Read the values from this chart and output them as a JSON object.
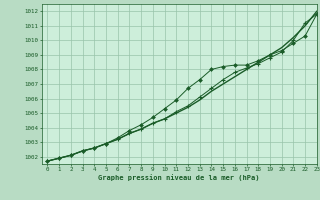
{
  "title": "Graphe pression niveau de la mer (hPa)",
  "background_color": "#b8dcc4",
  "plot_background": "#cdeeda",
  "grid_color": "#99c4aa",
  "line_color": "#1a5c28",
  "xlim": [
    -0.5,
    23
  ],
  "ylim": [
    1001.5,
    1012.5
  ],
  "xticks": [
    0,
    1,
    2,
    3,
    4,
    5,
    6,
    7,
    8,
    9,
    10,
    11,
    12,
    13,
    14,
    15,
    16,
    17,
    18,
    19,
    20,
    21,
    22,
    23
  ],
  "yticks": [
    1002,
    1003,
    1004,
    1005,
    1006,
    1007,
    1008,
    1009,
    1010,
    1011,
    1012
  ],
  "series1": [
    1001.7,
    1001.9,
    1002.1,
    1002.4,
    1002.6,
    1002.9,
    1003.2,
    1003.6,
    1003.9,
    1004.3,
    1004.6,
    1005.1,
    1005.5,
    1006.1,
    1006.7,
    1007.3,
    1007.8,
    1008.1,
    1008.4,
    1008.8,
    1009.2,
    1010.0,
    1011.2,
    1011.8
  ],
  "series2": [
    1001.7,
    1001.9,
    1002.1,
    1002.4,
    1002.6,
    1002.9,
    1003.3,
    1003.8,
    1004.2,
    1004.7,
    1005.3,
    1005.9,
    1006.7,
    1007.3,
    1008.0,
    1008.2,
    1008.3,
    1008.3,
    1008.6,
    1009.0,
    1009.3,
    1009.8,
    1010.3,
    1011.8
  ],
  "series3": [
    1001.7,
    1001.9,
    1002.1,
    1002.4,
    1002.6,
    1002.9,
    1003.2,
    1003.6,
    1003.9,
    1004.3,
    1004.6,
    1005.0,
    1005.4,
    1005.9,
    1006.5,
    1007.0,
    1007.5,
    1008.0,
    1008.5,
    1009.0,
    1009.5,
    1010.2,
    1011.0,
    1012.0
  ]
}
